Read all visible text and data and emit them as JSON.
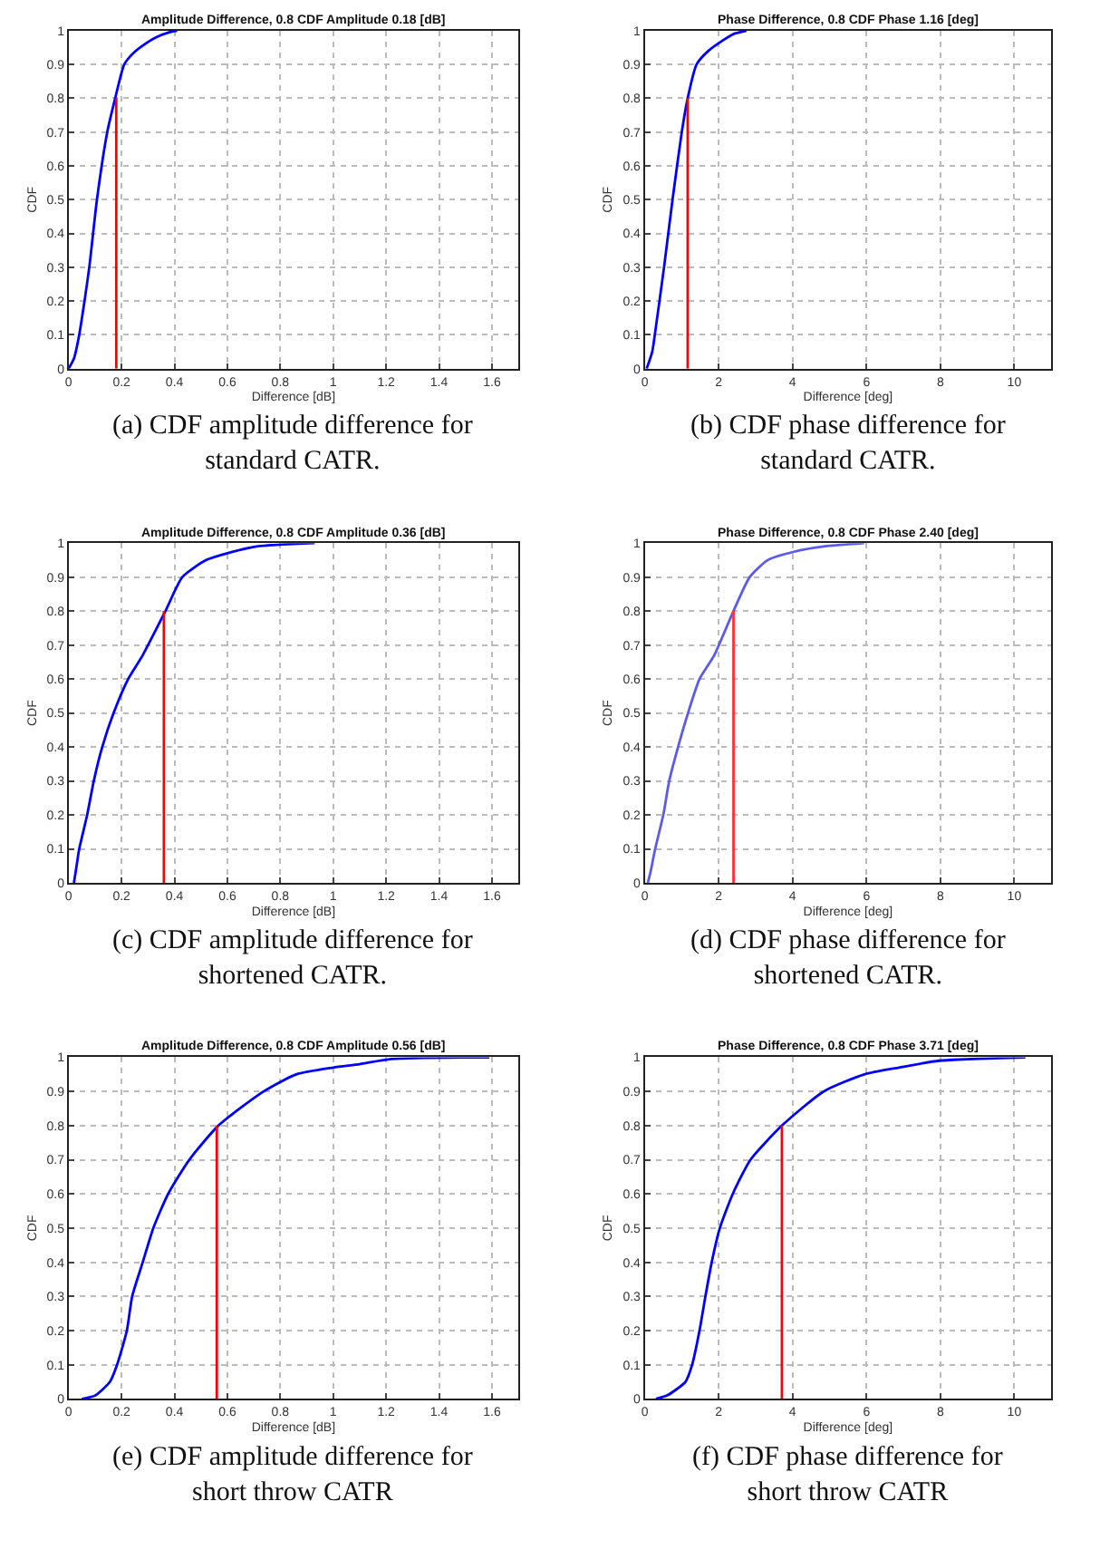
{
  "chart_data": [
    {
      "type": "line",
      "title": "Amplitude Difference, 0.8 CDF Amplitude 0.18 [dB]",
      "xlabel": "Difference [dB]",
      "ylabel": "CDF",
      "xlim": [
        0,
        1.7
      ],
      "ylim": [
        0,
        1
      ],
      "xticks": [
        0,
        0.2,
        0.4,
        0.6,
        0.8,
        1,
        1.2,
        1.4,
        1.6
      ],
      "yticks": [
        0,
        0.1,
        0.2,
        0.3,
        0.4,
        0.5,
        0.6,
        0.7,
        0.8,
        0.9,
        1
      ],
      "grid": true,
      "series": [
        {
          "color": "#0000ff",
          "x": [
            0,
            0.02,
            0.04,
            0.06,
            0.078,
            0.107,
            0.146,
            0.176,
            0.21,
            0.24,
            0.27,
            0.33,
            0.38,
            0.41
          ],
          "values": [
            0,
            0.03,
            0.1,
            0.2,
            0.3,
            0.5,
            0.7,
            0.8,
            0.9,
            0.93,
            0.95,
            0.98,
            0.995,
            1
          ]
        },
        {
          "type": "line",
          "color": "#ff0000",
          "x": [
            0.18,
            0.18
          ],
          "values": [
            0,
            0.8
          ]
        }
      ],
      "annotations": [
        "(a) CDF amplitude difference for standard CATR."
      ]
    },
    {
      "type": "line",
      "title": "Phase Difference, 0.8 CDF Phase 1.16 [deg]",
      "xlabel": "Difference [deg]",
      "ylabel": "CDF",
      "xlim": [
        0,
        11
      ],
      "ylim": [
        0,
        1
      ],
      "xticks": [
        0,
        2,
        4,
        6,
        8,
        10
      ],
      "yticks": [
        0,
        0.1,
        0.2,
        0.3,
        0.4,
        0.5,
        0.6,
        0.7,
        0.8,
        0.9,
        1
      ],
      "grid": true,
      "series": [
        {
          "color": "#0000ff",
          "x": [
            0.05,
            0.2,
            0.27,
            0.52,
            0.75,
            1.0,
            1.16,
            1.4,
            1.72,
            2.1,
            2.4,
            2.75
          ],
          "values": [
            0,
            0.05,
            0.1,
            0.3,
            0.5,
            0.7,
            0.8,
            0.9,
            0.94,
            0.97,
            0.99,
            1
          ]
        },
        {
          "type": "line",
          "color": "#ff0000",
          "x": [
            1.16,
            1.16
          ],
          "values": [
            0,
            0.8
          ]
        }
      ],
      "annotations": [
        "(b) CDF phase difference for standard CATR."
      ]
    },
    {
      "type": "line",
      "title": "Amplitude Difference, 0.8 CDF Amplitude 0.36 [dB]",
      "xlabel": "Difference [dB]",
      "ylabel": "CDF",
      "xlim": [
        0,
        1.7
      ],
      "ylim": [
        0,
        1
      ],
      "xticks": [
        0,
        0.2,
        0.4,
        0.6,
        0.8,
        1,
        1.2,
        1.4,
        1.6
      ],
      "yticks": [
        0,
        0.1,
        0.2,
        0.3,
        0.4,
        0.5,
        0.6,
        0.7,
        0.8,
        0.9,
        1
      ],
      "grid": true,
      "series": [
        {
          "color": "#0000ff",
          "x": [
            0.02,
            0.03,
            0.04,
            0.07,
            0.095,
            0.127,
            0.17,
            0.225,
            0.28,
            0.366,
            0.43,
            0.52,
            0.6,
            0.71,
            0.93
          ],
          "values": [
            0,
            0.05,
            0.1,
            0.2,
            0.3,
            0.4,
            0.5,
            0.6,
            0.67,
            0.8,
            0.9,
            0.95,
            0.97,
            0.99,
            1
          ]
        },
        {
          "type": "line",
          "color": "#ff0000",
          "x": [
            0.36,
            0.36
          ],
          "values": [
            0,
            0.8
          ]
        }
      ],
      "annotations": [
        "(c) CDF amplitude difference for shortened CATR."
      ]
    },
    {
      "type": "line",
      "title": "Phase Difference, 0.8 CDF Phase 2.40 [deg]",
      "xlabel": "Difference [deg]",
      "ylabel": "CDF",
      "xlim": [
        0,
        11
      ],
      "ylim": [
        0,
        1
      ],
      "xticks": [
        0,
        2,
        4,
        6,
        8,
        10
      ],
      "yticks": [
        0,
        0.1,
        0.2,
        0.3,
        0.4,
        0.5,
        0.6,
        0.7,
        0.8,
        0.9,
        1
      ],
      "grid": true,
      "series": [
        {
          "color": "#5a5aee",
          "x": [
            0.08,
            0.15,
            0.28,
            0.5,
            0.66,
            0.9,
            1.17,
            1.48,
            1.88,
            2.4,
            2.84,
            3.33,
            4.06,
            4.84,
            5.94
          ],
          "values": [
            0,
            0.03,
            0.1,
            0.2,
            0.3,
            0.4,
            0.5,
            0.6,
            0.67,
            0.8,
            0.9,
            0.95,
            0.975,
            0.99,
            1
          ]
        },
        {
          "type": "line",
          "color": "#ff3030",
          "x": [
            2.4,
            2.4
          ],
          "values": [
            0,
            0.8
          ]
        }
      ],
      "annotations": [
        "(d) CDF phase difference for shortened CATR."
      ]
    },
    {
      "type": "line",
      "title": "Amplitude Difference, 0.8 CDF Amplitude 0.56 [dB]",
      "xlabel": "Difference [dB]",
      "ylabel": "CDF",
      "xlim": [
        0,
        1.7
      ],
      "ylim": [
        0,
        1
      ],
      "xticks": [
        0,
        0.2,
        0.4,
        0.6,
        0.8,
        1,
        1.2,
        1.4,
        1.6
      ],
      "yticks": [
        0,
        0.1,
        0.2,
        0.3,
        0.4,
        0.5,
        0.6,
        0.7,
        0.8,
        0.9,
        1
      ],
      "grid": true,
      "series": [
        {
          "color": "#0000ff",
          "x": [
            0.05,
            0.1,
            0.156,
            0.183,
            0.22,
            0.24,
            0.28,
            0.32,
            0.376,
            0.456,
            0.566,
            0.737,
            0.86,
            1.0,
            1.1,
            1.22,
            1.59
          ],
          "values": [
            0,
            0.01,
            0.05,
            0.1,
            0.2,
            0.3,
            0.4,
            0.5,
            0.6,
            0.7,
            0.8,
            0.9,
            0.95,
            0.97,
            0.98,
            0.995,
            1
          ]
        },
        {
          "type": "line",
          "color": "#ff0000",
          "x": [
            0.56,
            0.56
          ],
          "values": [
            0,
            0.8
          ]
        }
      ],
      "annotations": [
        "(e) CDF amplitude difference for short throw CATR"
      ]
    },
    {
      "type": "line",
      "title": "Phase Difference, 0.8 CDF Phase 3.71 [deg]",
      "xlabel": "Difference [deg]",
      "ylabel": "CDF",
      "xlim": [
        0,
        11
      ],
      "ylim": [
        0,
        1
      ],
      "xticks": [
        0,
        2,
        4,
        6,
        8,
        10
      ],
      "yticks": [
        0,
        0.1,
        0.2,
        0.3,
        0.4,
        0.5,
        0.6,
        0.7,
        0.8,
        0.9,
        1
      ],
      "grid": true,
      "series": [
        {
          "color": "#0000ff",
          "x": [
            0.3,
            0.6,
            1.1,
            1.28,
            1.48,
            1.64,
            1.81,
            2.03,
            2.38,
            2.86,
            3.71,
            4.84,
            5.94,
            6.88,
            7.97,
            10.3
          ],
          "values": [
            0,
            0.01,
            0.05,
            0.1,
            0.2,
            0.3,
            0.4,
            0.5,
            0.6,
            0.7,
            0.8,
            0.9,
            0.95,
            0.97,
            0.99,
            1
          ]
        },
        {
          "type": "line",
          "color": "#ff0000",
          "x": [
            3.71,
            3.71
          ],
          "values": [
            0,
            0.8
          ]
        }
      ],
      "annotations": [
        "(f) CDF phase difference for short throw CATR"
      ]
    }
  ]
}
